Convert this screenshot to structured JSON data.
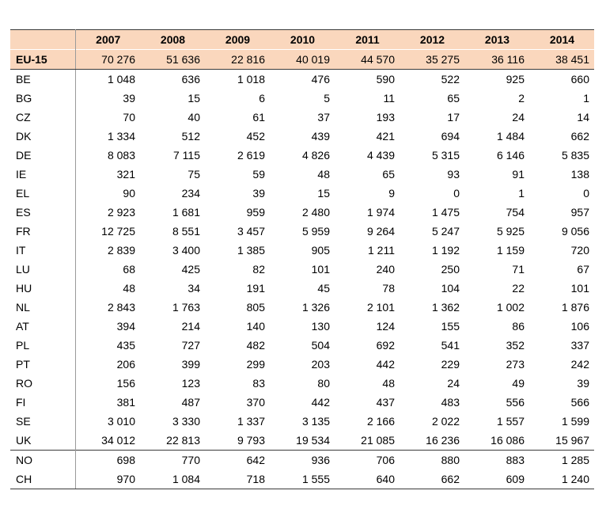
{
  "years": [
    "2007",
    "2008",
    "2009",
    "2010",
    "2011",
    "2012",
    "2013",
    "2014"
  ],
  "eu_row": {
    "label": "EU-15",
    "values": [
      "70 276",
      "51 636",
      "22 816",
      "40 019",
      "44 570",
      "35 275",
      "36 116",
      "38 451"
    ]
  },
  "rows": [
    {
      "label": "BE",
      "values": [
        "1 048",
        "636",
        "1 018",
        "476",
        "590",
        "522",
        "925",
        "660"
      ]
    },
    {
      "label": "BG",
      "values": [
        "39",
        "15",
        "6",
        "5",
        "11",
        "65",
        "2",
        "1"
      ]
    },
    {
      "label": "CZ",
      "values": [
        "70",
        "40",
        "61",
        "37",
        "193",
        "17",
        "24",
        "14"
      ]
    },
    {
      "label": "DK",
      "values": [
        "1 334",
        "512",
        "452",
        "439",
        "421",
        "694",
        "1 484",
        "662"
      ]
    },
    {
      "label": "DE",
      "values": [
        "8 083",
        "7 115",
        "2 619",
        "4 826",
        "4 439",
        "5 315",
        "6 146",
        "5 835"
      ]
    },
    {
      "label": "IE",
      "values": [
        "321",
        "75",
        "59",
        "48",
        "65",
        "93",
        "91",
        "138"
      ]
    },
    {
      "label": "EL",
      "values": [
        "90",
        "234",
        "39",
        "15",
        "9",
        "0",
        "1",
        "0"
      ]
    },
    {
      "label": "ES",
      "values": [
        "2 923",
        "1 681",
        "959",
        "2 480",
        "1 974",
        "1 475",
        "754",
        "957"
      ]
    },
    {
      "label": "FR",
      "values": [
        "12 725",
        "8 551",
        "3 457",
        "5 959",
        "9 264",
        "5 247",
        "5 925",
        "9 056"
      ]
    },
    {
      "label": "IT",
      "values": [
        "2 839",
        "3 400",
        "1 385",
        "905",
        "1 211",
        "1 192",
        "1 159",
        "720"
      ]
    },
    {
      "label": "LU",
      "values": [
        "68",
        "425",
        "82",
        "101",
        "240",
        "250",
        "71",
        "67"
      ]
    },
    {
      "label": "HU",
      "values": [
        "48",
        "34",
        "191",
        "45",
        "78",
        "104",
        "22",
        "101"
      ]
    },
    {
      "label": "NL",
      "values": [
        "2 843",
        "1 763",
        "805",
        "1 326",
        "2 101",
        "1 362",
        "1 002",
        "1 876"
      ]
    },
    {
      "label": "AT",
      "values": [
        "394",
        "214",
        "140",
        "130",
        "124",
        "155",
        "86",
        "106"
      ]
    },
    {
      "label": "PL",
      "values": [
        "435",
        "727",
        "482",
        "504",
        "692",
        "541",
        "352",
        "337"
      ]
    },
    {
      "label": "PT",
      "values": [
        "206",
        "399",
        "299",
        "203",
        "442",
        "229",
        "273",
        "242"
      ]
    },
    {
      "label": "RO",
      "values": [
        "156",
        "123",
        "83",
        "80",
        "48",
        "24",
        "49",
        "39"
      ]
    },
    {
      "label": "FI",
      "values": [
        "381",
        "487",
        "370",
        "442",
        "437",
        "483",
        "556",
        "566"
      ]
    },
    {
      "label": "SE",
      "values": [
        "3 010",
        "3 330",
        "1 337",
        "3 135",
        "2 166",
        "2 022",
        "1 557",
        "1 599"
      ]
    },
    {
      "label": "UK",
      "values": [
        "34 012",
        "22 813",
        "9 793",
        "19 534",
        "21 085",
        "16 236",
        "16 086",
        "15 967"
      ]
    }
  ],
  "extra_rows": [
    {
      "label": "NO",
      "values": [
        "698",
        "770",
        "642",
        "936",
        "706",
        "880",
        "883",
        "1 285"
      ]
    },
    {
      "label": "CH",
      "values": [
        "970",
        "1 084",
        "718",
        "1 555",
        "640",
        "662",
        "609",
        "1 240"
      ]
    }
  ],
  "colors": {
    "header_fill": "#fad7bd",
    "rule": "#3a3a3a"
  }
}
